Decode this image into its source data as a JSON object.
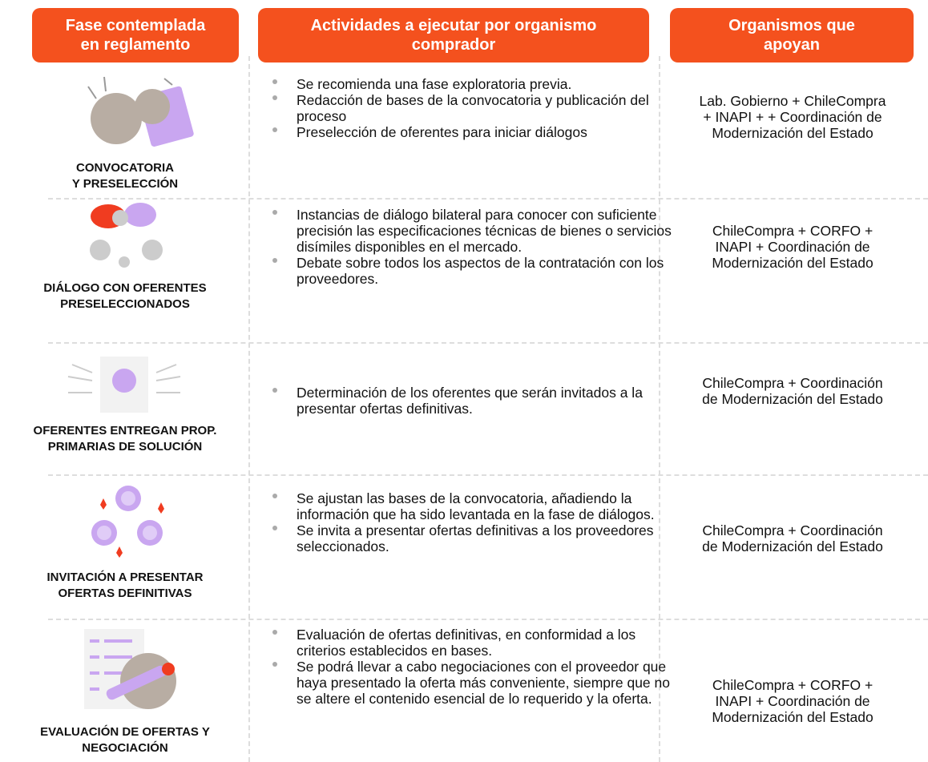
{
  "header": [
    "Fase contemplada\nen reglamento",
    "Actividades a ejecutar por organismo\ncomprador",
    "Organismos que\napoyan"
  ],
  "rows": [
    {
      "phase": "CONVOCATORIA\nY PRESELECCIÓN",
      "activities": [
        "Se recomienda una fase exploratoria previa.",
        "Redacción de bases de la convocatoria y publicación del proceso",
        "Preselección de oferentes para iniciar diálogos"
      ],
      "organisms": "Lab. Gobierno + ChileCompra\n+ INAPI + + Coordinación de\nModernización del Estado"
    },
    {
      "phase": "DIÁLOGO CON OFERENTES\nPRESELECCIONADOS",
      "activities": [
        "Instancias de diálogo bilateral para conocer con suficiente precisión las especificaciones técnicas de bienes o servicios disímiles disponibles en el mercado.",
        "Debate sobre todos los aspectos de la contratación con los proveedores."
      ],
      "organisms": "ChileCompra + CORFO +\nINAPI + Coordinación de\nModernización del Estado"
    },
    {
      "phase": "OFERENTES ENTREGAN PROP.\nPRIMARIAS DE SOLUCIÓN",
      "activities": [
        "Determinación de los oferentes que serán invitados a la presentar ofertas definitivas."
      ],
      "organisms": "ChileCompra + Coordinación\nde Modernización del Estado"
    },
    {
      "phase": "INVITACIÓN A PRESENTAR\nOFERTAS DEFINITIVAS",
      "activities": [
        "Se ajustan las bases de la convocatoria, añadiendo la información que ha sido levantada en la fase de diálogos.",
        "Se invita a presentar ofertas definitivas a los proveedores seleccionados."
      ],
      "organisms": "ChileCompra +  Coordinación\nde Modernización del Estado"
    },
    {
      "phase": "EVALUACIÓN DE OFERTAS Y\nNEGOCIACIÓN",
      "activities": [
        "Evaluación de ofertas definitivas, en conformidad a los criterios establecidos en bases.",
        "Se podrá llevar a cabo negociaciones con el proveedor que haya presentado la oferta más conveniente, siempre que no se altere el contenido esencial de lo requerido y la oferta."
      ],
      "organisms": "ChileCompra + CORFO +\nINAPI + Coordinación de\nModernización del Estado"
    }
  ]
}
